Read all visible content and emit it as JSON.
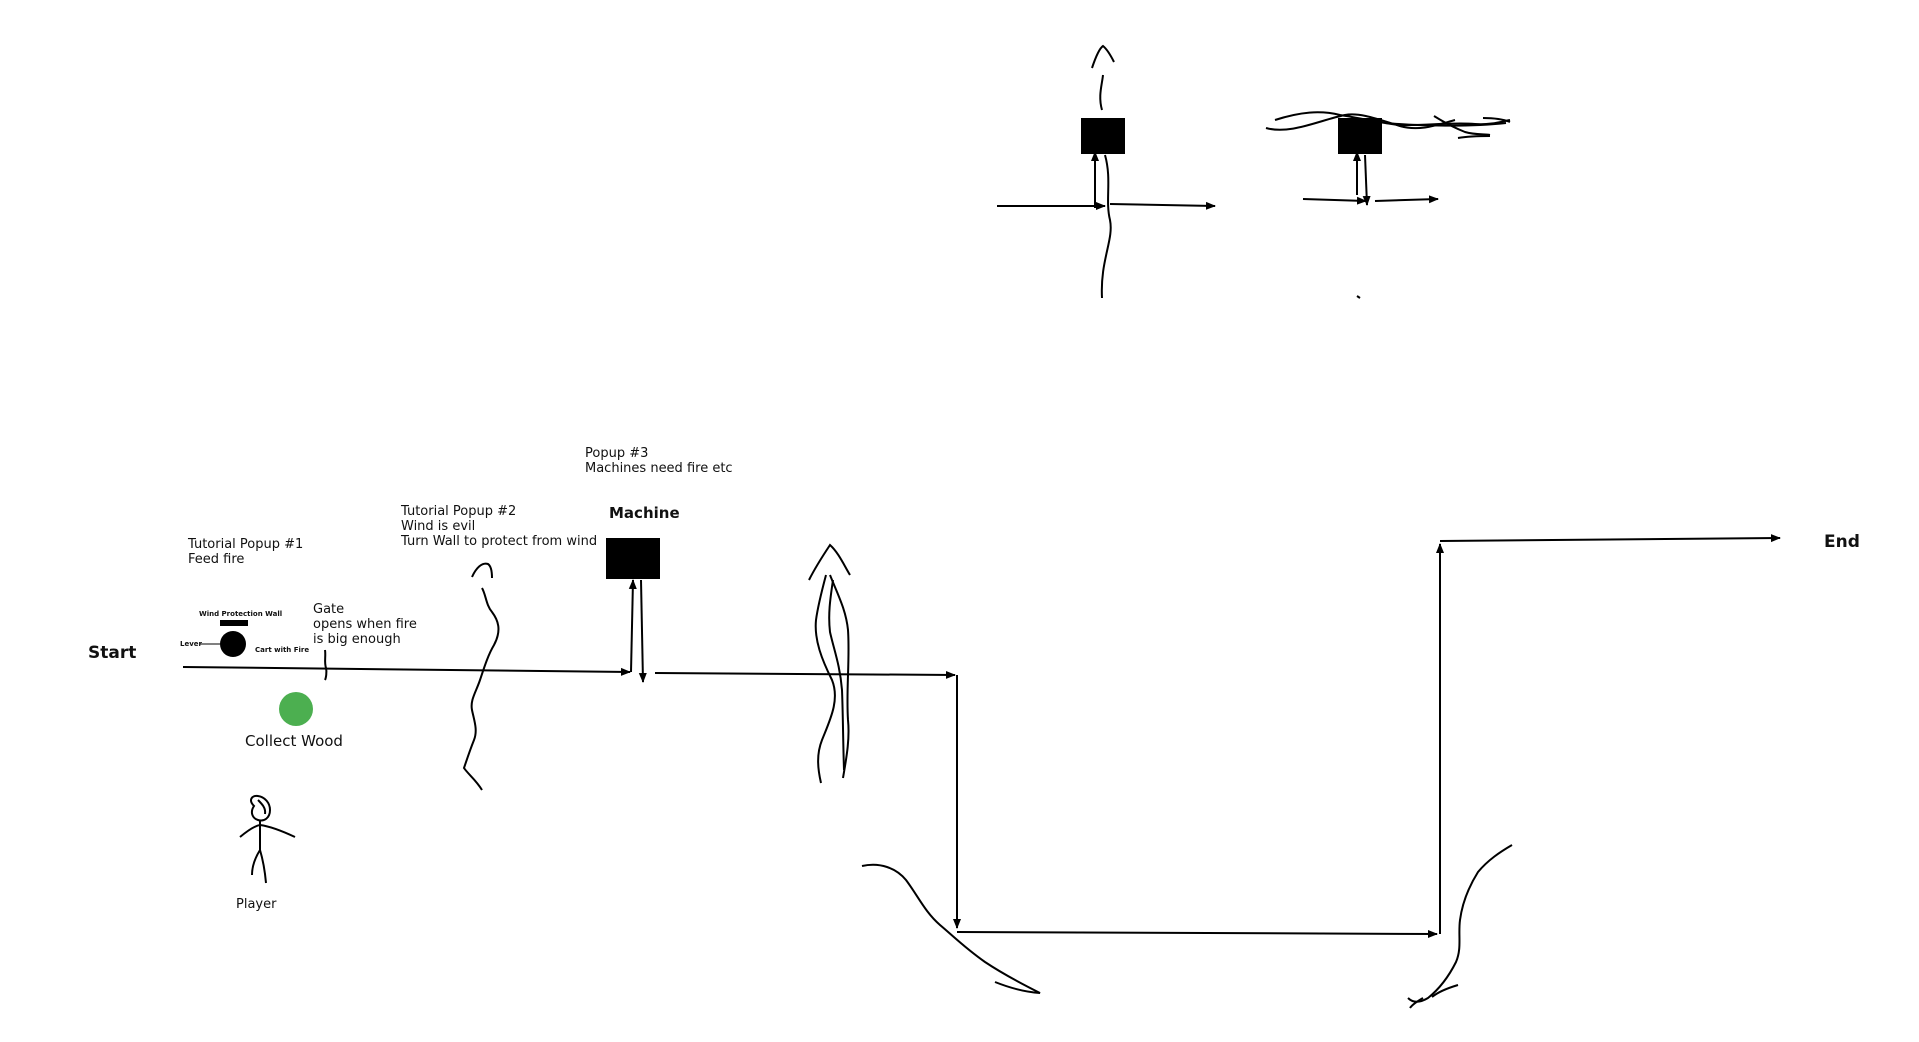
{
  "labels": {
    "start": "Start",
    "end": "End",
    "collect_wood": "Collect Wood",
    "player": "Player",
    "machine": "Machine",
    "wind_protection_wall": "Wind Protection Wall",
    "lever": "Lever",
    "cart_with_fire": "Cart with Fire"
  },
  "popup1": {
    "title": "Tutorial Popup #1",
    "lines": [
      "Feed fire"
    ]
  },
  "popup2": {
    "title": "Tutorial Popup #2",
    "lines": [
      "Wind is evil",
      "Turn Wall to protect from wind"
    ]
  },
  "popup3": {
    "title": "Popup #3",
    "lines": [
      "Machines need fire etc"
    ]
  },
  "gate": {
    "title": "Gate",
    "lines": [
      "opens when fire",
      "is big enough"
    ]
  },
  "colors": {
    "ink": "#000000",
    "wood_marker": "#4caf50",
    "background": "#ffffff"
  }
}
